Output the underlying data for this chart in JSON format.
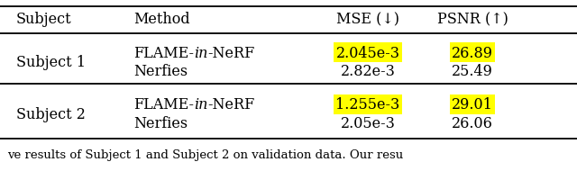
{
  "headers": [
    "Subject",
    "Method",
    "MSE (↓)",
    "PSNR (↑)"
  ],
  "rows": [
    {
      "subject": "Subject 1",
      "method_parts": [
        [
          "FLAME-",
          false
        ],
        [
          "in",
          true
        ],
        [
          "-NeRF",
          false
        ]
      ],
      "mse": "2.045e-3",
      "psnr": "26.89",
      "highlight": true
    },
    {
      "subject": "",
      "method_parts": [
        [
          "Nerfies",
          false
        ]
      ],
      "mse": "2.82e-3",
      "psnr": "25.49",
      "highlight": false
    },
    {
      "subject": "Subject 2",
      "method_parts": [
        [
          "FLAME-",
          false
        ],
        [
          "in",
          true
        ],
        [
          "-NeRF",
          false
        ]
      ],
      "mse": "1.255e-3",
      "psnr": "29.01",
      "highlight": true
    },
    {
      "subject": "",
      "method_parts": [
        [
          "Nerfies",
          false
        ]
      ],
      "mse": "2.05e-3",
      "psnr": "26.06",
      "highlight": false
    }
  ],
  "highlight_color": "#FFFF00",
  "bg_color": "#FFFFFF",
  "text_color": "#000000",
  "caption_text": "ve results of Subject 1 and Subject 2 on validation data. Our resu",
  "figsize": [
    6.4,
    2.01
  ],
  "dpi": 100
}
